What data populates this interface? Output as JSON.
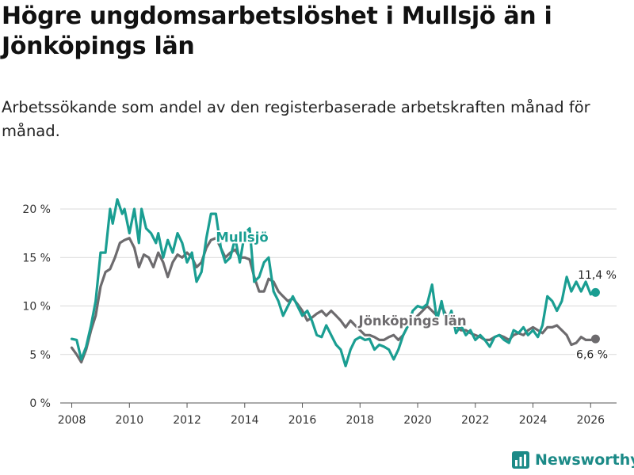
{
  "title": "Högre ungdomsarbetslöshet i Mullsjö än i Jönköpings län",
  "subtitle": "Arbetssökande som andel av den registerbaserade arbetskraften månad för månad.",
  "brand": {
    "name": "Newsworthy",
    "icon": "bar-chart-logo-icon"
  },
  "colors": {
    "mullsjo": "#1a9e92",
    "lan": "#6d6b6e",
    "grid": "#d9d9d9",
    "text": "#222222"
  },
  "chart_data": {
    "type": "line",
    "title": "Högre ungdomsarbetslöshet i Mullsjö än i Jönköpings län",
    "xlabel": "",
    "ylabel": "",
    "xlim": [
      2007.6,
      2026.9
    ],
    "ylim": [
      0,
      20
    ],
    "yticks": [
      0,
      5,
      10,
      15,
      20
    ],
    "ytick_labels": [
      "0 %",
      "5 %",
      "10 %",
      "15 %",
      "20 %"
    ],
    "xticks": [
      2008,
      2010,
      2012,
      2014,
      2016,
      2018,
      2020,
      2022,
      2024,
      2026
    ],
    "xtick_labels": [
      "2008",
      "2010",
      "2012",
      "2014",
      "2016",
      "2018",
      "2020",
      "2022",
      "2024",
      "2026"
    ],
    "grid": true,
    "series": [
      {
        "name": "Mullsjö",
        "label": "Mullsjö",
        "end_label": "11,4 %",
        "points": [
          [
            2008.0,
            6.6
          ],
          [
            2008.17,
            6.5
          ],
          [
            2008.33,
            4.5
          ],
          [
            2008.5,
            5.8
          ],
          [
            2008.67,
            8.0
          ],
          [
            2008.83,
            10.5
          ],
          [
            2009.0,
            15.5
          ],
          [
            2009.17,
            15.5
          ],
          [
            2009.33,
            20.0
          ],
          [
            2009.42,
            18.5
          ],
          [
            2009.58,
            21.0
          ],
          [
            2009.75,
            19.5
          ],
          [
            2009.83,
            20.0
          ],
          [
            2010.0,
            17.5
          ],
          [
            2010.17,
            20.0
          ],
          [
            2010.33,
            16.5
          ],
          [
            2010.42,
            20.0
          ],
          [
            2010.58,
            18.0
          ],
          [
            2010.75,
            17.5
          ],
          [
            2010.92,
            16.5
          ],
          [
            2011.0,
            17.5
          ],
          [
            2011.17,
            15.0
          ],
          [
            2011.33,
            16.8
          ],
          [
            2011.5,
            15.5
          ],
          [
            2011.67,
            17.5
          ],
          [
            2011.83,
            16.5
          ],
          [
            2012.0,
            14.5
          ],
          [
            2012.17,
            15.5
          ],
          [
            2012.33,
            12.5
          ],
          [
            2012.5,
            13.5
          ],
          [
            2012.67,
            17.0
          ],
          [
            2012.83,
            19.5
          ],
          [
            2013.0,
            19.5
          ],
          [
            2013.17,
            16.0
          ],
          [
            2013.33,
            14.5
          ],
          [
            2013.5,
            15.0
          ],
          [
            2013.67,
            17.0
          ],
          [
            2013.83,
            14.5
          ],
          [
            2014.0,
            17.5
          ],
          [
            2014.17,
            18.0
          ],
          [
            2014.33,
            12.5
          ],
          [
            2014.5,
            13.0
          ],
          [
            2014.67,
            14.5
          ],
          [
            2014.83,
            15.0
          ],
          [
            2015.0,
            11.5
          ],
          [
            2015.17,
            10.5
          ],
          [
            2015.33,
            9.0
          ],
          [
            2015.5,
            10.0
          ],
          [
            2015.67,
            11.0
          ],
          [
            2015.83,
            10.0
          ],
          [
            2016.0,
            9.0
          ],
          [
            2016.17,
            9.5
          ],
          [
            2016.33,
            8.5
          ],
          [
            2016.5,
            7.0
          ],
          [
            2016.67,
            6.8
          ],
          [
            2016.83,
            8.0
          ],
          [
            2017.0,
            7.0
          ],
          [
            2017.17,
            6.0
          ],
          [
            2017.33,
            5.5
          ],
          [
            2017.5,
            3.8
          ],
          [
            2017.67,
            5.5
          ],
          [
            2017.83,
            6.5
          ],
          [
            2018.0,
            6.8
          ],
          [
            2018.17,
            6.5
          ],
          [
            2018.33,
            6.6
          ],
          [
            2018.5,
            5.5
          ],
          [
            2018.67,
            6.0
          ],
          [
            2018.83,
            5.8
          ],
          [
            2019.0,
            5.5
          ],
          [
            2019.17,
            4.5
          ],
          [
            2019.33,
            5.5
          ],
          [
            2019.5,
            7.0
          ],
          [
            2019.67,
            8.0
          ],
          [
            2019.83,
            9.5
          ],
          [
            2020.0,
            10.0
          ],
          [
            2020.17,
            9.8
          ],
          [
            2020.33,
            10.2
          ],
          [
            2020.5,
            12.2
          ],
          [
            2020.67,
            8.5
          ],
          [
            2020.83,
            10.5
          ],
          [
            2021.0,
            8.0
          ],
          [
            2021.17,
            9.5
          ],
          [
            2021.33,
            7.2
          ],
          [
            2021.5,
            8.0
          ],
          [
            2021.67,
            7.0
          ],
          [
            2021.83,
            7.5
          ],
          [
            2022.0,
            6.5
          ],
          [
            2022.17,
            7.0
          ],
          [
            2022.33,
            6.5
          ],
          [
            2022.5,
            5.8
          ],
          [
            2022.67,
            6.8
          ],
          [
            2022.83,
            7.0
          ],
          [
            2023.0,
            6.5
          ],
          [
            2023.17,
            6.2
          ],
          [
            2023.33,
            7.5
          ],
          [
            2023.5,
            7.2
          ],
          [
            2023.67,
            7.8
          ],
          [
            2023.83,
            7.0
          ],
          [
            2024.0,
            7.5
          ],
          [
            2024.17,
            6.8
          ],
          [
            2024.33,
            8.0
          ],
          [
            2024.5,
            11.0
          ],
          [
            2024.67,
            10.5
          ],
          [
            2024.83,
            9.5
          ],
          [
            2025.0,
            10.5
          ],
          [
            2025.17,
            13.0
          ],
          [
            2025.33,
            11.5
          ],
          [
            2025.5,
            12.5
          ],
          [
            2025.67,
            11.5
          ],
          [
            2025.83,
            12.5
          ],
          [
            2026.0,
            11.2
          ],
          [
            2026.17,
            11.4
          ]
        ]
      },
      {
        "name": "Jönköpings län",
        "label": "Jönköpings län",
        "end_label": "6,6 %",
        "points": [
          [
            2008.0,
            5.7
          ],
          [
            2008.17,
            5.0
          ],
          [
            2008.33,
            4.2
          ],
          [
            2008.5,
            5.5
          ],
          [
            2008.67,
            7.5
          ],
          [
            2008.83,
            9.0
          ],
          [
            2009.0,
            12.0
          ],
          [
            2009.17,
            13.5
          ],
          [
            2009.33,
            13.8
          ],
          [
            2009.5,
            15.0
          ],
          [
            2009.67,
            16.5
          ],
          [
            2009.83,
            16.8
          ],
          [
            2010.0,
            17.0
          ],
          [
            2010.17,
            16.0
          ],
          [
            2010.33,
            14.0
          ],
          [
            2010.5,
            15.3
          ],
          [
            2010.67,
            15.0
          ],
          [
            2010.83,
            14.0
          ],
          [
            2011.0,
            15.5
          ],
          [
            2011.17,
            14.5
          ],
          [
            2011.33,
            13.0
          ],
          [
            2011.5,
            14.5
          ],
          [
            2011.67,
            15.3
          ],
          [
            2011.83,
            15.0
          ],
          [
            2012.0,
            15.5
          ],
          [
            2012.17,
            15.0
          ],
          [
            2012.33,
            14.0
          ],
          [
            2012.5,
            14.5
          ],
          [
            2012.67,
            16.0
          ],
          [
            2012.83,
            16.8
          ],
          [
            2013.0,
            17.0
          ],
          [
            2013.17,
            16.0
          ],
          [
            2013.33,
            15.0
          ],
          [
            2013.5,
            15.5
          ],
          [
            2013.67,
            15.8
          ],
          [
            2013.83,
            15.0
          ],
          [
            2014.0,
            15.0
          ],
          [
            2014.17,
            14.8
          ],
          [
            2014.33,
            13.0
          ],
          [
            2014.5,
            11.5
          ],
          [
            2014.67,
            11.5
          ],
          [
            2014.83,
            12.8
          ],
          [
            2015.0,
            12.5
          ],
          [
            2015.17,
            11.5
          ],
          [
            2015.33,
            11.0
          ],
          [
            2015.5,
            10.5
          ],
          [
            2015.67,
            10.8
          ],
          [
            2015.83,
            10.2
          ],
          [
            2016.0,
            9.5
          ],
          [
            2016.17,
            8.5
          ],
          [
            2016.33,
            8.8
          ],
          [
            2016.5,
            9.2
          ],
          [
            2016.67,
            9.5
          ],
          [
            2016.83,
            9.0
          ],
          [
            2017.0,
            9.5
          ],
          [
            2017.17,
            9.0
          ],
          [
            2017.33,
            8.5
          ],
          [
            2017.5,
            7.8
          ],
          [
            2017.67,
            8.5
          ],
          [
            2017.83,
            8.0
          ],
          [
            2018.0,
            7.5
          ],
          [
            2018.17,
            7.0
          ],
          [
            2018.33,
            7.0
          ],
          [
            2018.5,
            6.8
          ],
          [
            2018.67,
            6.5
          ],
          [
            2018.83,
            6.5
          ],
          [
            2019.0,
            6.8
          ],
          [
            2019.17,
            7.0
          ],
          [
            2019.33,
            6.5
          ],
          [
            2019.5,
            7.0
          ],
          [
            2019.67,
            8.0
          ],
          [
            2019.83,
            8.5
          ],
          [
            2020.0,
            9.0
          ],
          [
            2020.17,
            9.5
          ],
          [
            2020.33,
            10.0
          ],
          [
            2020.5,
            9.5
          ],
          [
            2020.67,
            9.0
          ],
          [
            2020.83,
            10.0
          ],
          [
            2021.0,
            9.0
          ],
          [
            2021.17,
            8.5
          ],
          [
            2021.33,
            8.0
          ],
          [
            2021.5,
            7.5
          ],
          [
            2021.67,
            7.5
          ],
          [
            2021.83,
            7.2
          ],
          [
            2022.0,
            7.0
          ],
          [
            2022.17,
            6.8
          ],
          [
            2022.33,
            6.5
          ],
          [
            2022.5,
            6.5
          ],
          [
            2022.67,
            6.8
          ],
          [
            2022.83,
            7.0
          ],
          [
            2023.0,
            6.8
          ],
          [
            2023.17,
            6.5
          ],
          [
            2023.33,
            7.0
          ],
          [
            2023.5,
            7.2
          ],
          [
            2023.67,
            7.0
          ],
          [
            2023.83,
            7.5
          ],
          [
            2024.0,
            7.8
          ],
          [
            2024.17,
            7.5
          ],
          [
            2024.33,
            7.2
          ],
          [
            2024.5,
            7.8
          ],
          [
            2024.67,
            7.8
          ],
          [
            2024.83,
            8.0
          ],
          [
            2025.0,
            7.5
          ],
          [
            2025.17,
            7.0
          ],
          [
            2025.33,
            6.0
          ],
          [
            2025.5,
            6.2
          ],
          [
            2025.67,
            6.8
          ],
          [
            2025.83,
            6.5
          ],
          [
            2026.0,
            6.5
          ],
          [
            2026.17,
            6.6
          ]
        ]
      }
    ]
  }
}
